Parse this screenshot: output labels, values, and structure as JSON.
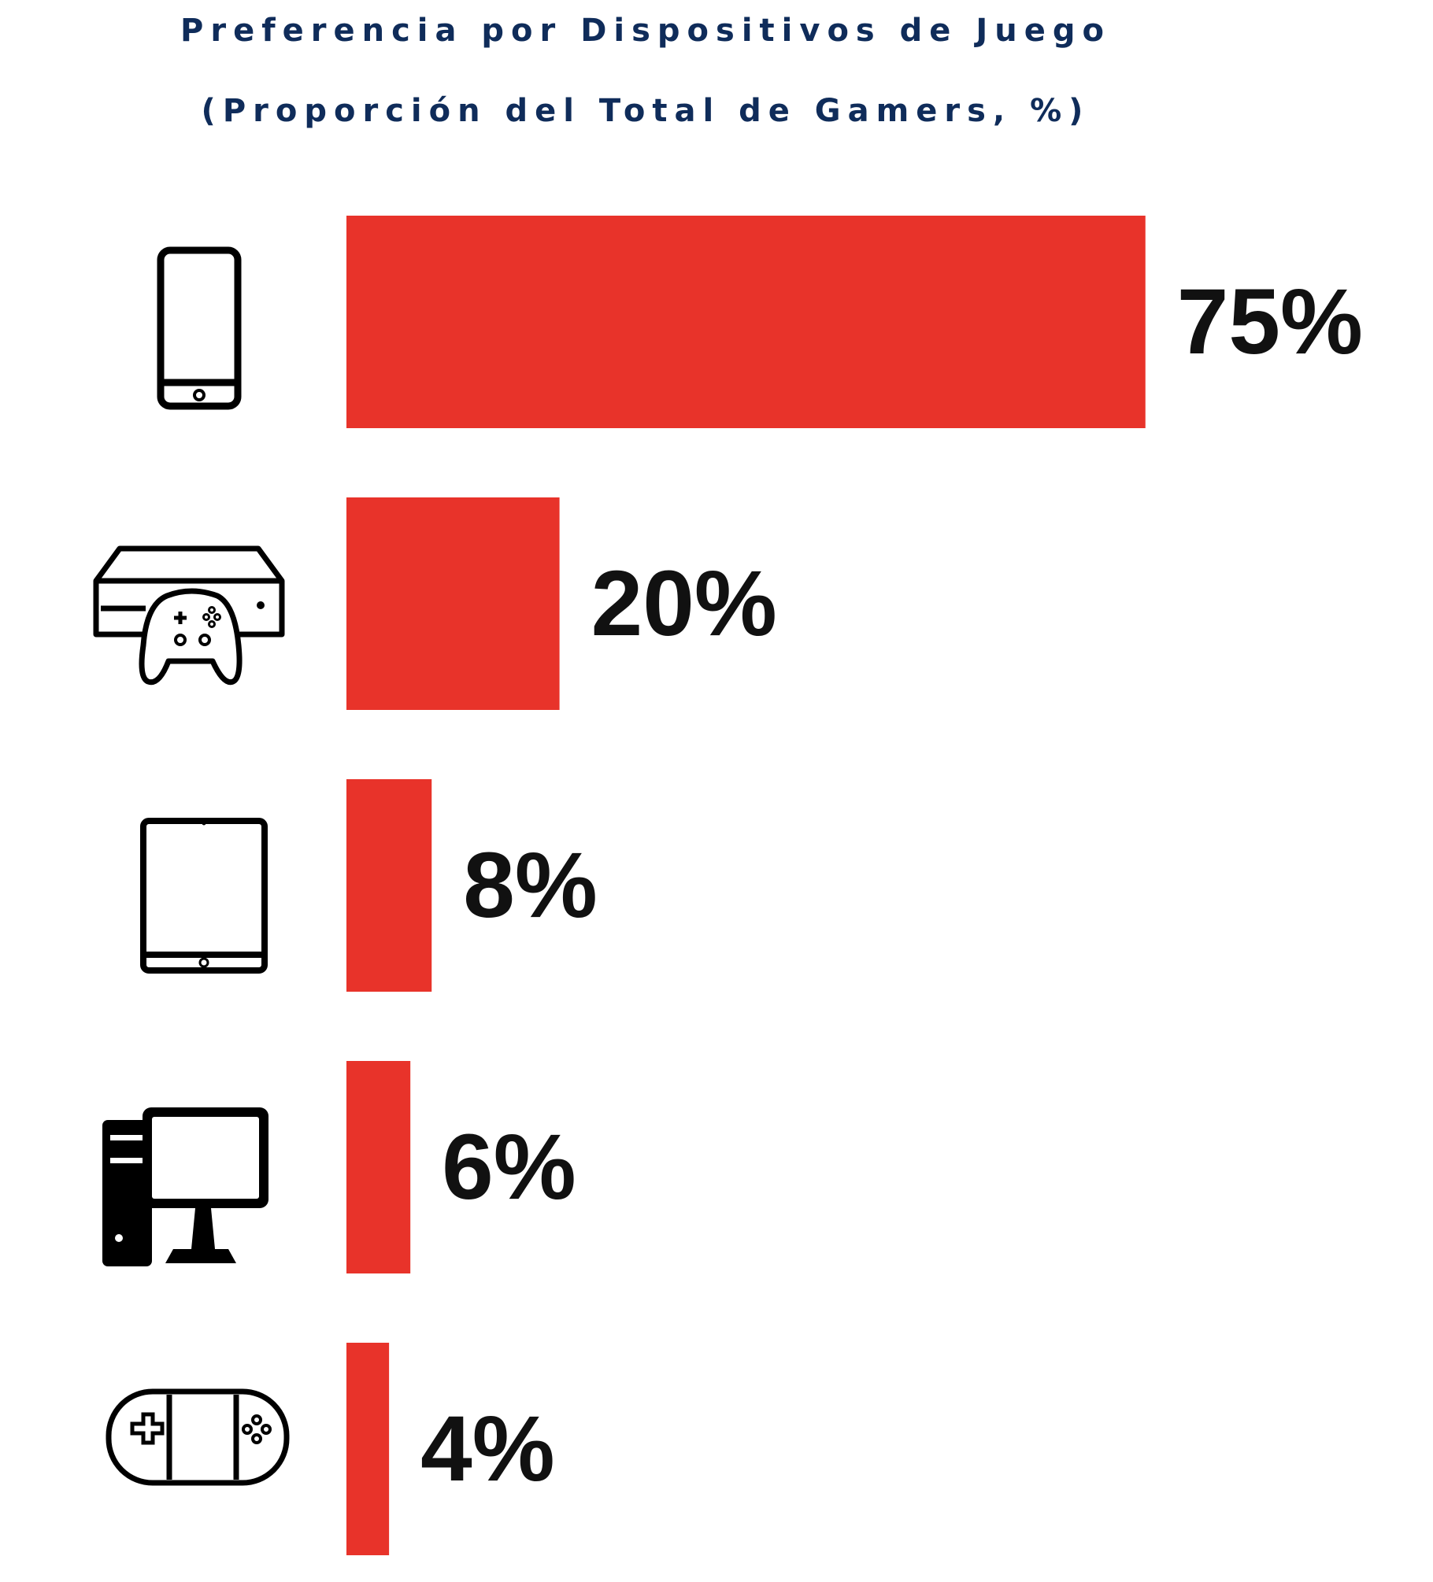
{
  "colors": {
    "title": "#0f2c5a",
    "bar": "#e8332a",
    "label": "#111111",
    "icon": "#000000",
    "background": "#ffffff"
  },
  "chart_data": {
    "type": "bar",
    "orientation": "horizontal",
    "title": "Preferencia por Dispositivos de Juego",
    "subtitle": "(Proporción del Total de Gamers, %)",
    "xlabel": "",
    "ylabel": "",
    "grid": false,
    "legend": "none",
    "xlim": [
      0,
      100
    ],
    "unit": "%",
    "categories": [
      "smartphone-icon",
      "console-icon",
      "tablet-icon",
      "desktop-pc-icon",
      "handheld-console-icon"
    ],
    "values": [
      75,
      20,
      8,
      6,
      4
    ],
    "data_labels": [
      "75%",
      "20%",
      "8%",
      "6%",
      "4%"
    ]
  }
}
